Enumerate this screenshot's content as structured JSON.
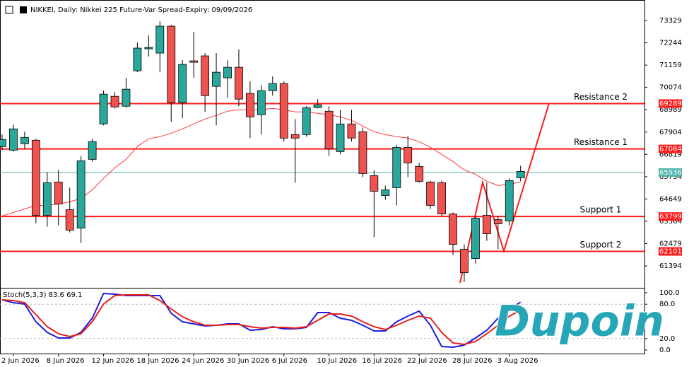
{
  "logo": "Dupoin",
  "chart_data": [
    {
      "type": "candlestick",
      "title": "NIKKEI, Daily: Nikkei 225 Future-Var Spread-Expiry: 09/09/2026",
      "categories": [
        null,
        "2 Jun 2026",
        null,
        null,
        null,
        "8 Jun 2026",
        null,
        null,
        null,
        "12 Jun 2026",
        null,
        null,
        null,
        "18 Jun 2026",
        null,
        null,
        null,
        "24 Jun 2026",
        null,
        null,
        null,
        "30 Jun 2026",
        null,
        null,
        null,
        "6 Jul 2026",
        null,
        null,
        null,
        "10 Jul 2026",
        null,
        null,
        null,
        "16 Jul 2026",
        null,
        null,
        null,
        "22 Jul 2026",
        null,
        null,
        null,
        "28 Jul 2026",
        null,
        null,
        null,
        "3 Aug 2026",
        null
      ],
      "open": [
        67197,
        67025,
        67335,
        67507,
        63855,
        65474,
        64131,
        63235,
        66577,
        68299,
        69643,
        69161,
        70883,
        71952,
        71744,
        73053,
        69333,
        71366,
        71607,
        70125,
        70538,
        71055,
        69781,
        68747,
        69918,
        70263,
        67782,
        67782,
        69092,
        68919,
        66956,
        68299,
        67920,
        65784,
        64820,
        65199,
        67162,
        66232,
        65474,
        65440,
        63924,
        62202,
        61754,
        63855,
        63648,
        63579,
        65681
      ],
      "high": [
        67782,
        68265,
        67920,
        67576,
        65957,
        66060,
        65199,
        66749,
        67576,
        69918,
        69850,
        70538,
        72261,
        72606,
        73295,
        73122,
        71400,
        72778,
        71744,
        71744,
        71400,
        71917,
        70366,
        70194,
        70607,
        70366,
        68540,
        69161,
        69505,
        69161,
        68989,
        68989,
        68127,
        66060,
        65302,
        67266,
        67713,
        66405,
        65543,
        65543,
        63993,
        62443,
        63820,
        65440,
        63820,
        65647,
        66267
      ],
      "low": [
        67025,
        66956,
        67094,
        63476,
        63304,
        63373,
        63028,
        62511,
        66474,
        68230,
        69057,
        69092,
        70814,
        71572,
        70814,
        68403,
        68575,
        70538,
        68885,
        68230,
        69574,
        69161,
        67610,
        67782,
        69677,
        67438,
        65440,
        67679,
        69057,
        66749,
        66818,
        67438,
        65716,
        62787,
        64613,
        64338,
        65716,
        65440,
        64166,
        63820,
        61926,
        60617,
        61513,
        62615,
        62202,
        63373,
        65509
      ],
      "close": [
        67541,
        68058,
        67645,
        63855,
        65440,
        64407,
        63132,
        66508,
        67438,
        69746,
        69126,
        69987,
        71986,
        72021,
        73053,
        69333,
        71193,
        71296,
        69677,
        70814,
        71055,
        69505,
        68644,
        69918,
        70263,
        67610,
        67610,
        69092,
        69229,
        67094,
        68299,
        67610,
        65888,
        65027,
        65096,
        67162,
        66405,
        65509,
        64338,
        63924,
        62443,
        61065,
        63717,
        62960,
        63442,
        65543,
        65991
      ],
      "up_color": "#2aa79b",
      "down_color": "#ef5350",
      "lines": [
        {
          "color": "#ff3b3b",
          "values": [
            63821,
            63993,
            64166,
            64338,
            64338,
            64407,
            64510,
            64682,
            65096,
            65647,
            66164,
            66577,
            67197,
            67576,
            67679,
            67851,
            68058,
            68299,
            68540,
            68713,
            68919,
            68989,
            68989,
            68989,
            69057,
            68989,
            68885,
            68885,
            68816,
            68747,
            68644,
            68472,
            68196,
            67920,
            67782,
            67679,
            67610,
            67438,
            67162,
            66818,
            66474,
            66060,
            65853,
            65509,
            65302,
            65371,
            65474
          ]
        }
      ],
      "levels": [
        {
          "label": "Resistance 2",
          "value": 69289,
          "color": "#ff1a1a"
        },
        {
          "label": "Resistance 1",
          "value": 67084,
          "color": "#ff1a1a"
        },
        {
          "label": "Support 1",
          "value": 63799,
          "color": "#ff1a1a"
        },
        {
          "label": "Support 2",
          "value": 62101,
          "color": "#ff1a1a"
        }
      ],
      "last_price": 65936,
      "last_price_color": "#52b3ab",
      "ylim": [
        60400,
        74050
      ],
      "yticks": [
        73329,
        72244,
        71159,
        70074,
        68989,
        67904,
        66819,
        65734,
        64649,
        63564,
        62479,
        61394
      ]
    },
    {
      "type": "line",
      "title": "Stoch(5,3,3) 83.6 69.1",
      "series": [
        {
          "color": "#1c1ce0",
          "values": [
            87.7,
            82.7,
            80.2,
            49.4,
            30.9,
            21.0,
            21.0,
            30.9,
            55.6,
            98.8,
            97.5,
            95.1,
            95.1,
            95.1,
            95.1,
            64.2,
            49.4,
            45.7,
            42.0,
            43.2,
            45.7,
            45.7,
            34.6,
            35.8,
            40.7,
            37.0,
            37.0,
            39.5,
            65.4,
            65.4,
            55.6,
            51.9,
            43.2,
            33.3,
            33.3,
            49.4,
            59.3,
            67.9,
            43.2,
            6.2,
            4.9,
            8.6,
            21.0,
            34.6,
            55.6,
            71.6,
            83.6
          ]
        },
        {
          "color": "#e8201a",
          "values": [
            87.7,
            86.4,
            82.7,
            61.7,
            40.7,
            28.4,
            23.5,
            28.4,
            49.4,
            80.2,
            95.1,
            96.3,
            96.3,
            96.3,
            86.4,
            71.6,
            58.0,
            49.4,
            43.2,
            43.2,
            44.4,
            44.4,
            40.7,
            38.3,
            39.5,
            39.5,
            38.3,
            40.7,
            51.9,
            63.0,
            63.0,
            59.3,
            49.4,
            40.7,
            35.8,
            43.2,
            51.9,
            59.3,
            55.6,
            30.9,
            12.3,
            9.9,
            14.8,
            28.4,
            43.2,
            59.3,
            69.1
          ]
        }
      ],
      "ylim": [
        0,
        100
      ],
      "yticks": [
        {
          "value": 100,
          "label": "100.0"
        },
        {
          "value": 80,
          "label": "80.0"
        },
        {
          "value": 20,
          "label": "20.0"
        },
        {
          "value": 0,
          "label": "0.0"
        }
      ]
    }
  ]
}
